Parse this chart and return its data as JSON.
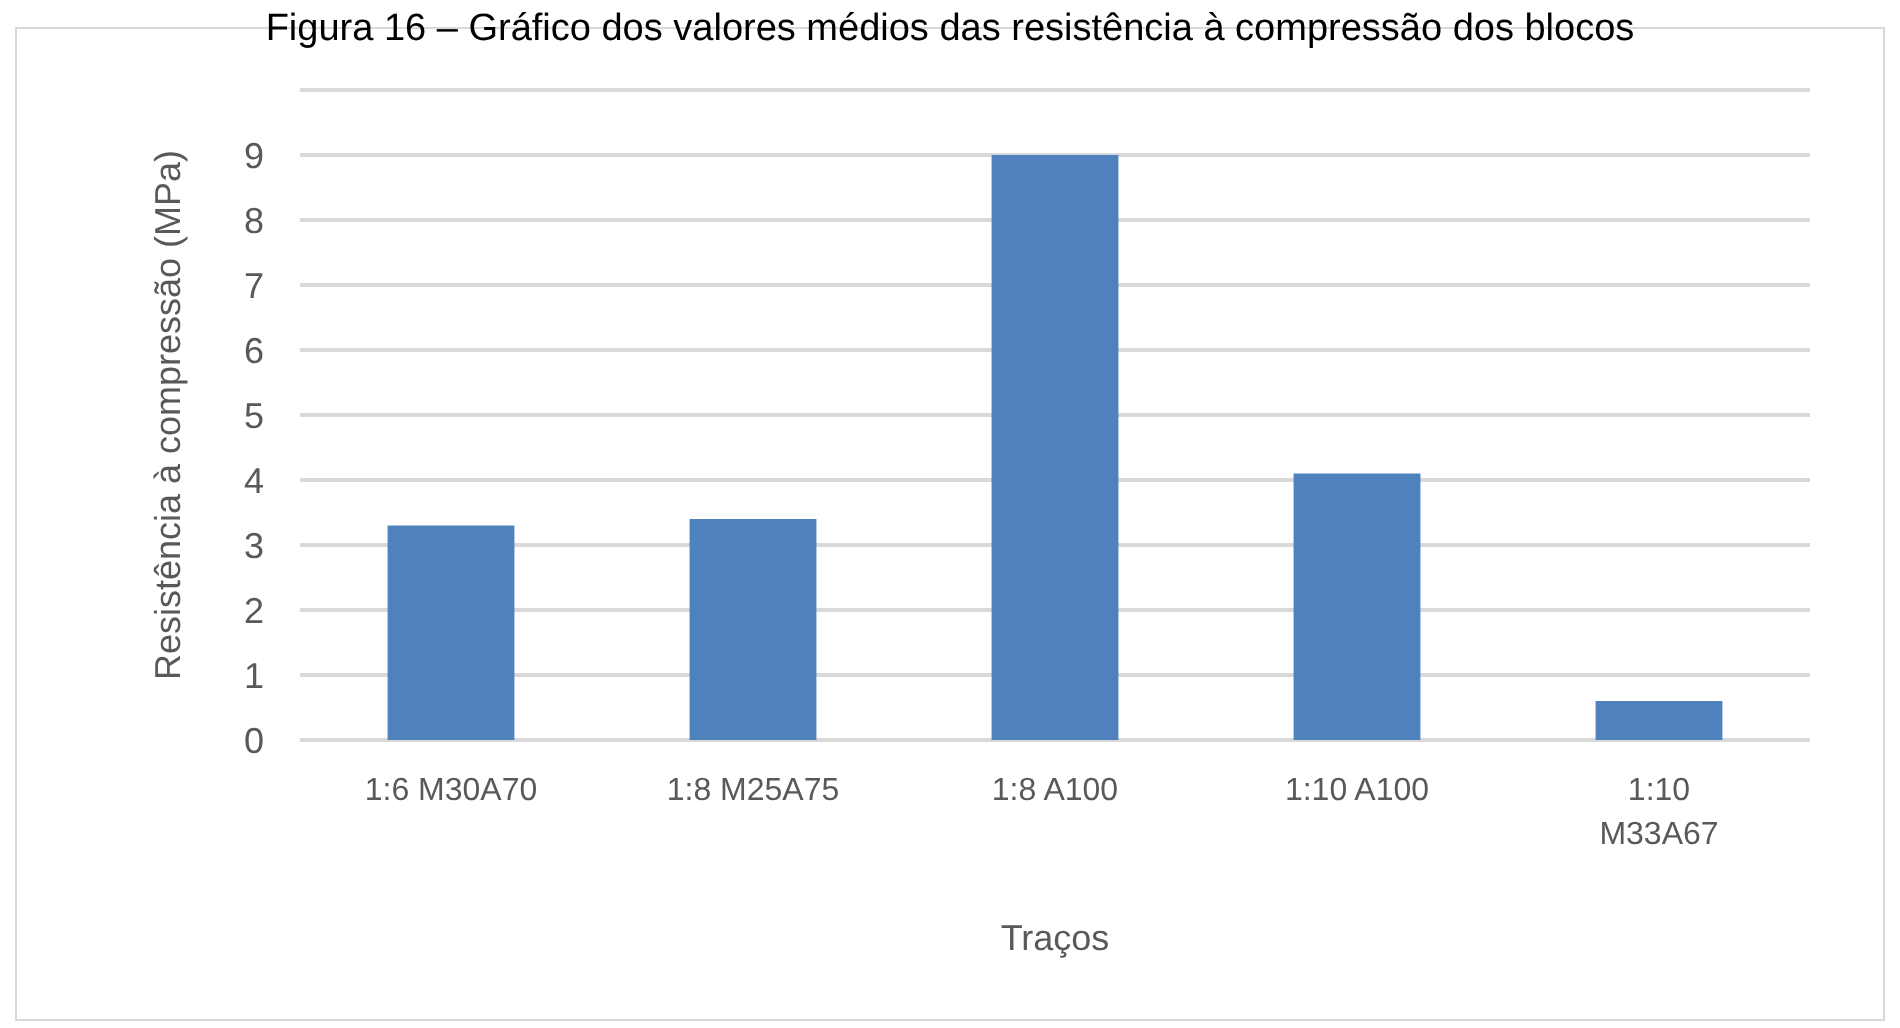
{
  "chart_data": {
    "type": "bar",
    "title": "Figura 16 – Gráfico dos valores médios das resistência à compressão dos blocos",
    "xlabel": "Traços",
    "ylabel": "Resistência à compressão (MPa)",
    "categories": [
      "1:6 M30A70",
      "1:8 M25A75",
      "1:8 A100",
      "1:10 A100",
      "1:10 M33A67"
    ],
    "values": [
      3.3,
      3.4,
      9.0,
      4.1,
      0.6
    ],
    "color": "#4f81bd",
    "ylim": [
      0,
      10
    ],
    "yticks": [
      0,
      1,
      2,
      3,
      4,
      5,
      6,
      7,
      8,
      9,
      {
        "value": 10,
        "label": null
      }
    ],
    "grid": "y"
  }
}
